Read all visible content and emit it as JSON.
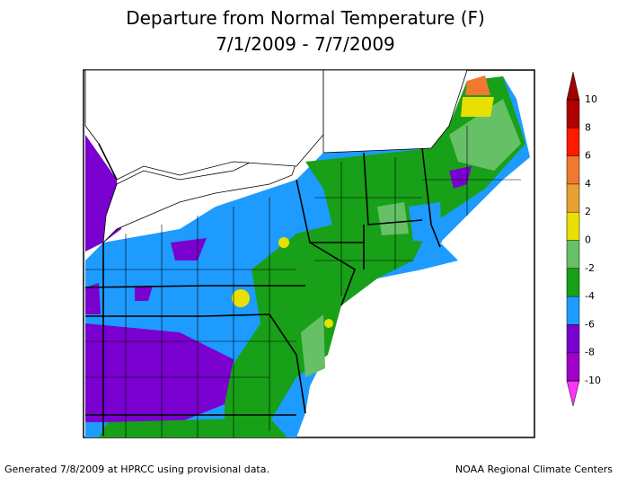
{
  "header": {
    "title": "Departure from Normal Temperature (F)",
    "subtitle": "7/1/2009 - 7/7/2009"
  },
  "legend": {
    "ticks": [
      10,
      8,
      6,
      4,
      2,
      0,
      -2,
      -4,
      -6,
      -8,
      -10
    ],
    "colors": [
      "#a00000",
      "#b00000",
      "#ff1a00",
      "#f07830",
      "#e8a030",
      "#e8e000",
      "#66c066",
      "#18a018",
      "#1e9bff",
      "#7a00d0",
      "#a000c8",
      "#ff33ff"
    ]
  },
  "footer": {
    "left": "Generated 7/8/2009 at HPRCC using provisional data.",
    "right": "NOAA Regional Climate Centers"
  }
}
